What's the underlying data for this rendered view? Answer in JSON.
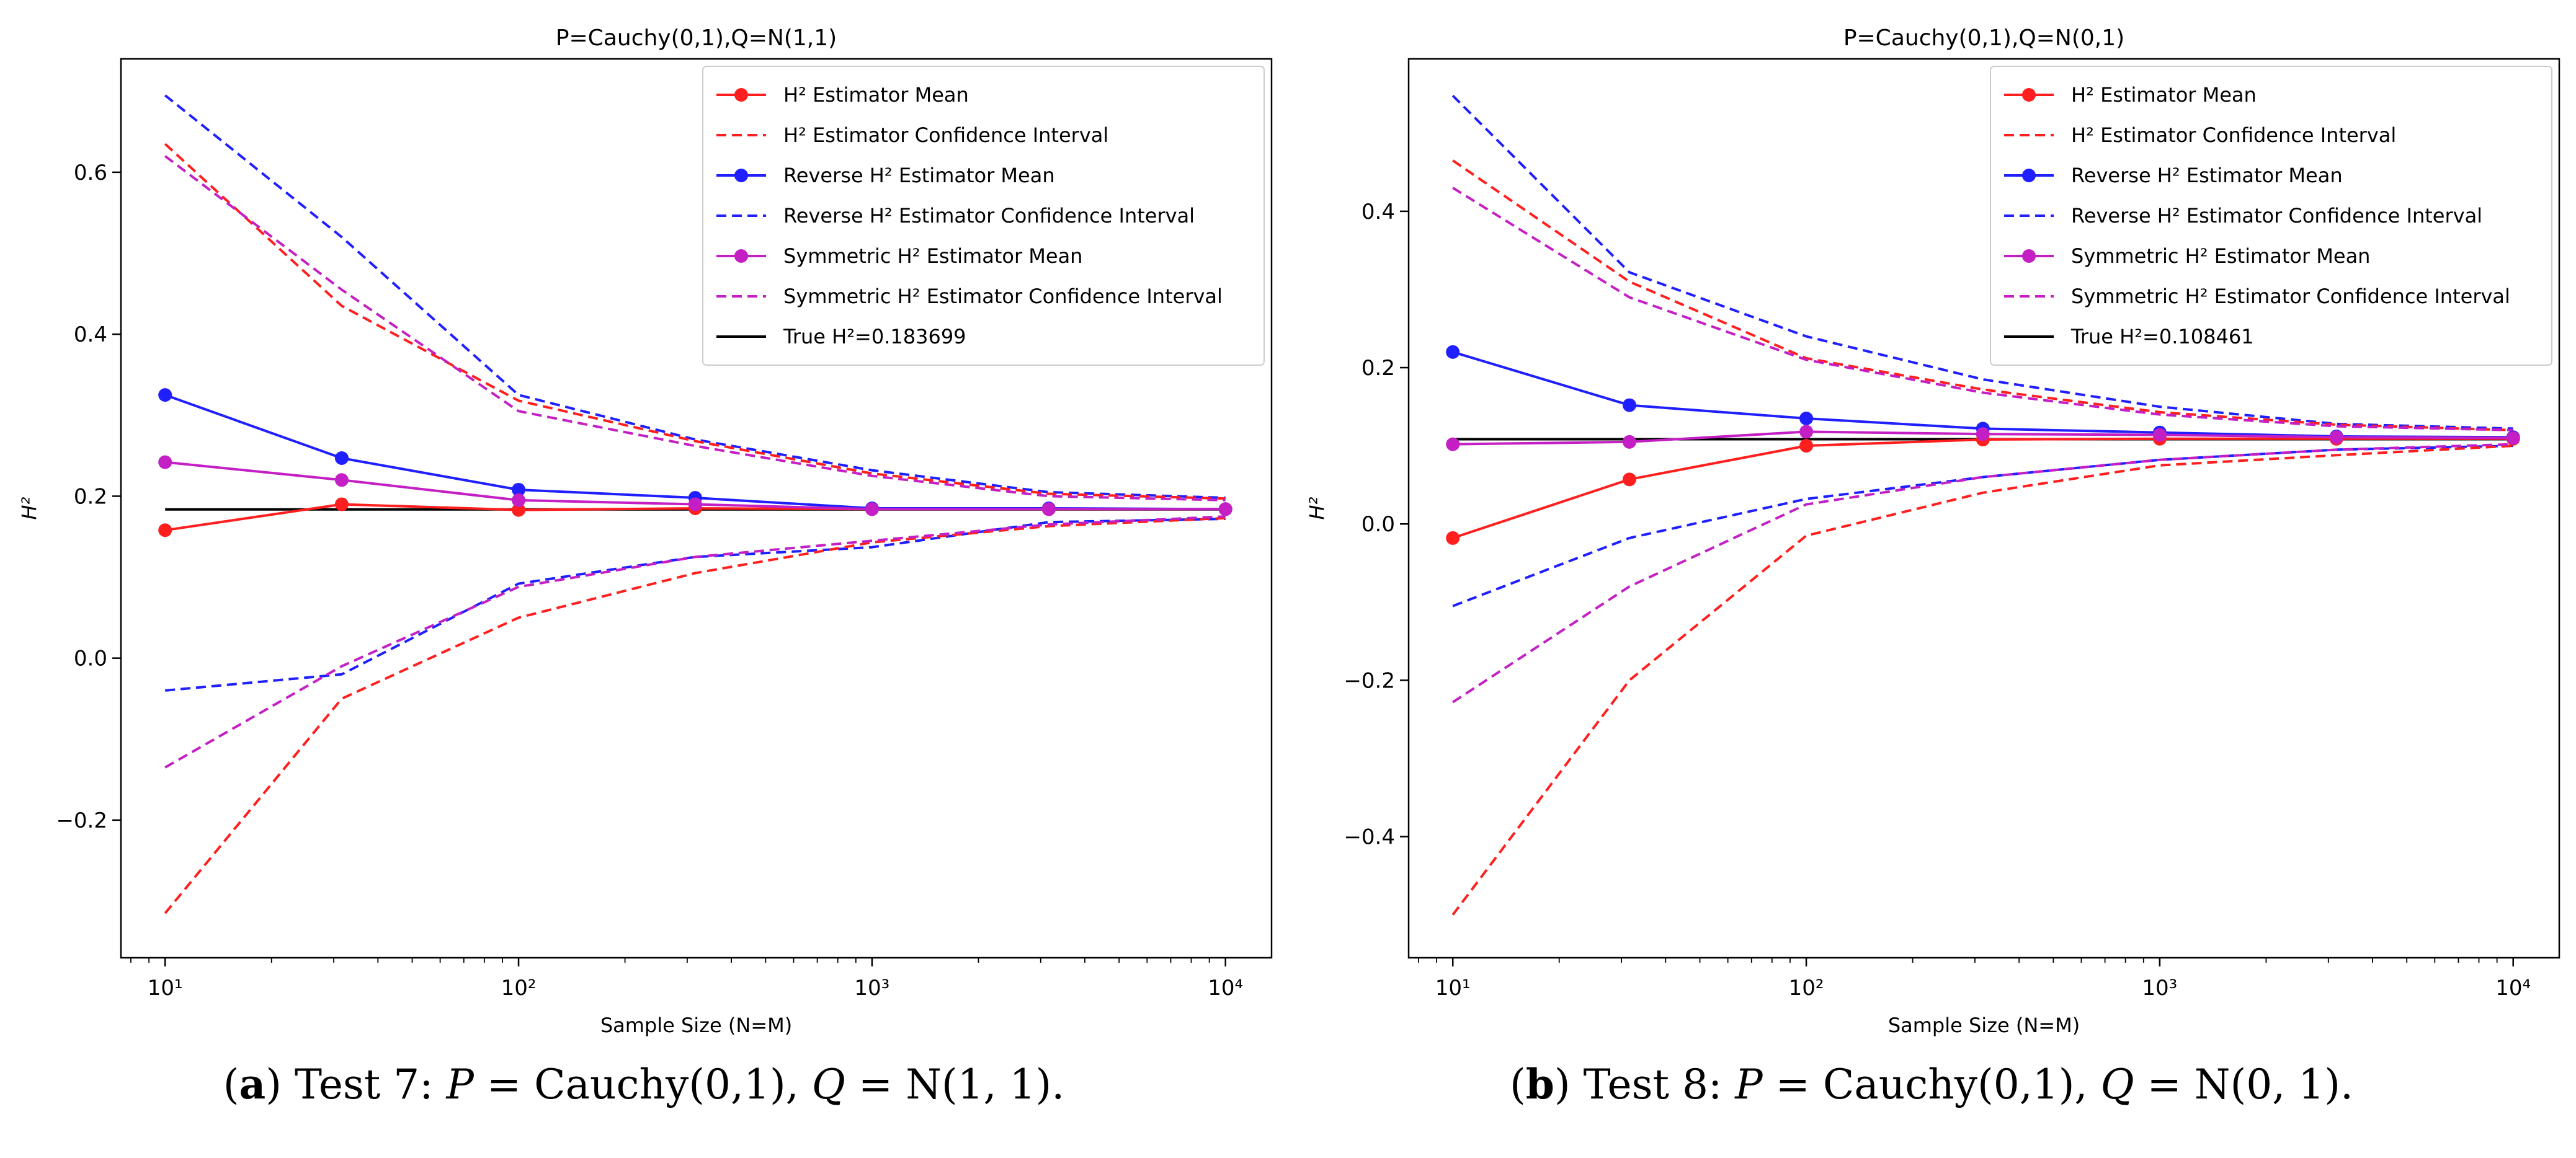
{
  "chart_data": [
    {
      "type": "line",
      "title": "P=Cauchy(0,1),Q=N(1,1)",
      "xlabel": "Sample Size (N=M)",
      "ylabel": "H²",
      "xscale": "log",
      "xlim": [
        7.5,
        13500
      ],
      "ylim": [
        -0.37,
        0.74
      ],
      "xticks": [
        10,
        100,
        1000,
        10000
      ],
      "xtick_labels": [
        "10¹",
        "10²",
        "10³",
        "10⁴"
      ],
      "yticks": [
        -0.2,
        0.0,
        0.2,
        0.4,
        0.6
      ],
      "ytick_labels": [
        "−0.2",
        "0.0",
        "0.2",
        "0.4",
        "0.6"
      ],
      "legend_position": "top-right",
      "x": [
        10,
        31.6,
        100,
        316,
        1000,
        3162,
        10000
      ],
      "series": [
        {
          "name": "Reverse H² Estimator Confidence Interval (upper)",
          "color": "#1f1fff",
          "style": "dashed",
          "markers": false,
          "values": [
            0.695,
            0.52,
            0.325,
            0.27,
            0.232,
            0.205,
            0.198
          ]
        },
        {
          "name": "Reverse H² Estimator Confidence Interval (lower)",
          "color": "#1f1fff",
          "style": "dashed",
          "markers": false,
          "values": [
            -0.04,
            -0.02,
            0.092,
            0.125,
            0.137,
            0.168,
            0.172
          ]
        },
        {
          "name": "H² Estimator Confidence Interval (upper)",
          "color": "#ff1f1f",
          "style": "dashed",
          "markers": false,
          "values": [
            0.635,
            0.435,
            0.318,
            0.268,
            0.228,
            0.203,
            0.197
          ]
        },
        {
          "name": "H² Estimator Confidence Interval (lower)",
          "color": "#ff1f1f",
          "style": "dashed",
          "markers": false,
          "values": [
            -0.315,
            -0.05,
            0.05,
            0.105,
            0.143,
            0.163,
            0.173
          ]
        },
        {
          "name": "Symmetric H² Estimator Confidence Interval (upper)",
          "color": "#c41fc4",
          "style": "dashed",
          "markers": false,
          "values": [
            0.62,
            0.455,
            0.305,
            0.262,
            0.225,
            0.2,
            0.195
          ]
        },
        {
          "name": "Symmetric H² Estimator Confidence Interval (lower)",
          "color": "#c41fc4",
          "style": "dashed",
          "markers": false,
          "values": [
            -0.135,
            -0.01,
            0.088,
            0.125,
            0.145,
            0.165,
            0.175
          ]
        },
        {
          "name": "True H²=0.183699",
          "color": "#000000",
          "style": "solid",
          "markers": false,
          "values": [
            0.183699,
            0.183699,
            0.183699,
            0.183699,
            0.183699,
            0.183699,
            0.183699
          ]
        },
        {
          "name": "H² Estimator Mean",
          "color": "#ff1f1f",
          "style": "solid",
          "markers": true,
          "values": [
            0.158,
            0.19,
            0.183,
            0.185,
            0.184,
            0.184,
            0.184
          ]
        },
        {
          "name": "Reverse H² Estimator Mean",
          "color": "#1f1fff",
          "style": "solid",
          "markers": true,
          "values": [
            0.325,
            0.247,
            0.208,
            0.198,
            0.185,
            0.185,
            0.184
          ]
        },
        {
          "name": "Symmetric H² Estimator Mean",
          "color": "#c41fc4",
          "style": "solid",
          "markers": true,
          "values": [
            0.242,
            0.22,
            0.195,
            0.19,
            0.184,
            0.184,
            0.184
          ]
        }
      ],
      "legend": [
        {
          "label": "H² Estimator Mean",
          "color": "#ff1f1f",
          "style": "solid",
          "markers": true
        },
        {
          "label": "H² Estimator Confidence Interval",
          "color": "#ff1f1f",
          "style": "dashed",
          "markers": false
        },
        {
          "label": "Reverse H² Estimator Mean",
          "color": "#1f1fff",
          "style": "solid",
          "markers": true
        },
        {
          "label": "Reverse H² Estimator Confidence Interval",
          "color": "#1f1fff",
          "style": "dashed",
          "markers": false
        },
        {
          "label": "Symmetric H² Estimator Mean",
          "color": "#c41fc4",
          "style": "solid",
          "markers": true
        },
        {
          "label": "Symmetric H² Estimator Confidence Interval",
          "color": "#c41fc4",
          "style": "dashed",
          "markers": false
        },
        {
          "label": "True H²=0.183699",
          "color": "#000000",
          "style": "solid",
          "markers": false
        }
      ]
    },
    {
      "type": "line",
      "title": "P=Cauchy(0,1),Q=N(0,1)",
      "xlabel": "Sample Size (N=M)",
      "ylabel": "H²",
      "xscale": "log",
      "xlim": [
        7.5,
        13500
      ],
      "ylim": [
        -0.555,
        0.595
      ],
      "xticks": [
        10,
        100,
        1000,
        10000
      ],
      "xtick_labels": [
        "10¹",
        "10²",
        "10³",
        "10⁴"
      ],
      "yticks": [
        -0.4,
        -0.2,
        0.0,
        0.2,
        0.4
      ],
      "ytick_labels": [
        "−0.4",
        "−0.2",
        "0.0",
        "0.2",
        "0.4"
      ],
      "legend_position": "top-right",
      "x": [
        10,
        31.6,
        100,
        316,
        1000,
        3162,
        10000
      ],
      "series": [
        {
          "name": "Reverse H² Estimator Confidence Interval (upper)",
          "color": "#1f1fff",
          "style": "dashed",
          "markers": false,
          "values": [
            0.548,
            0.322,
            0.24,
            0.185,
            0.15,
            0.128,
            0.122
          ]
        },
        {
          "name": "Reverse H² Estimator Confidence Interval (lower)",
          "color": "#1f1fff",
          "style": "dashed",
          "markers": false,
          "values": [
            -0.105,
            -0.018,
            0.032,
            0.06,
            0.082,
            0.095,
            0.1
          ]
        },
        {
          "name": "H² Estimator Confidence Interval (upper)",
          "color": "#ff1f1f",
          "style": "dashed",
          "markers": false,
          "values": [
            0.465,
            0.31,
            0.212,
            0.172,
            0.143,
            0.127,
            0.12
          ]
        },
        {
          "name": "H² Estimator Confidence Interval (lower)",
          "color": "#ff1f1f",
          "style": "dashed",
          "markers": false,
          "values": [
            -0.5,
            -0.2,
            -0.015,
            0.04,
            0.075,
            0.088,
            0.1
          ]
        },
        {
          "name": "Symmetric H² Estimator Confidence Interval (upper)",
          "color": "#c41fc4",
          "style": "dashed",
          "markers": false,
          "values": [
            0.43,
            0.29,
            0.21,
            0.168,
            0.14,
            0.125,
            0.12
          ]
        },
        {
          "name": "Symmetric H² Estimator Confidence Interval (lower)",
          "color": "#c41fc4",
          "style": "dashed",
          "markers": false,
          "values": [
            -0.228,
            -0.08,
            0.025,
            0.06,
            0.082,
            0.095,
            0.102
          ]
        },
        {
          "name": "True H²=0.108461",
          "color": "#000000",
          "style": "solid",
          "markers": false,
          "values": [
            0.108461,
            0.108461,
            0.108461,
            0.108461,
            0.108461,
            0.108461,
            0.108461
          ]
        },
        {
          "name": "H² Estimator Mean",
          "color": "#ff1f1f",
          "style": "solid",
          "markers": true,
          "values": [
            -0.018,
            0.057,
            0.1,
            0.108,
            0.109,
            0.109,
            0.109
          ]
        },
        {
          "name": "Reverse H² Estimator Mean",
          "color": "#1f1fff",
          "style": "solid",
          "markers": true,
          "values": [
            0.22,
            0.152,
            0.135,
            0.122,
            0.117,
            0.112,
            0.111
          ]
        },
        {
          "name": "Symmetric H² Estimator Mean",
          "color": "#c41fc4",
          "style": "solid",
          "markers": true,
          "values": [
            0.102,
            0.105,
            0.118,
            0.115,
            0.114,
            0.111,
            0.11
          ]
        }
      ],
      "legend": [
        {
          "label": "H² Estimator Mean",
          "color": "#ff1f1f",
          "style": "solid",
          "markers": true
        },
        {
          "label": "H² Estimator Confidence Interval",
          "color": "#ff1f1f",
          "style": "dashed",
          "markers": false
        },
        {
          "label": "Reverse H² Estimator Mean",
          "color": "#1f1fff",
          "style": "solid",
          "markers": true
        },
        {
          "label": "Reverse H² Estimator Confidence Interval",
          "color": "#1f1fff",
          "style": "dashed",
          "markers": false
        },
        {
          "label": "Symmetric H² Estimator Mean",
          "color": "#c41fc4",
          "style": "solid",
          "markers": true
        },
        {
          "label": "Symmetric H² Estimator Confidence Interval",
          "color": "#c41fc4",
          "style": "dashed",
          "markers": false
        },
        {
          "label": "True H²=0.108461",
          "color": "#000000",
          "style": "solid",
          "markers": false
        }
      ]
    }
  ],
  "captions": [
    {
      "tag": "a",
      "test": "Test 7:",
      "p_label": "P",
      "p_value": "= Cauchy(0,1),",
      "q_label": "Q",
      "q_value": "= N(1, 1)."
    },
    {
      "tag": "b",
      "test": "Test 8:",
      "p_label": "P",
      "p_value": "= Cauchy(0,1),",
      "q_label": "Q",
      "q_value": "= N(0, 1)."
    }
  ]
}
